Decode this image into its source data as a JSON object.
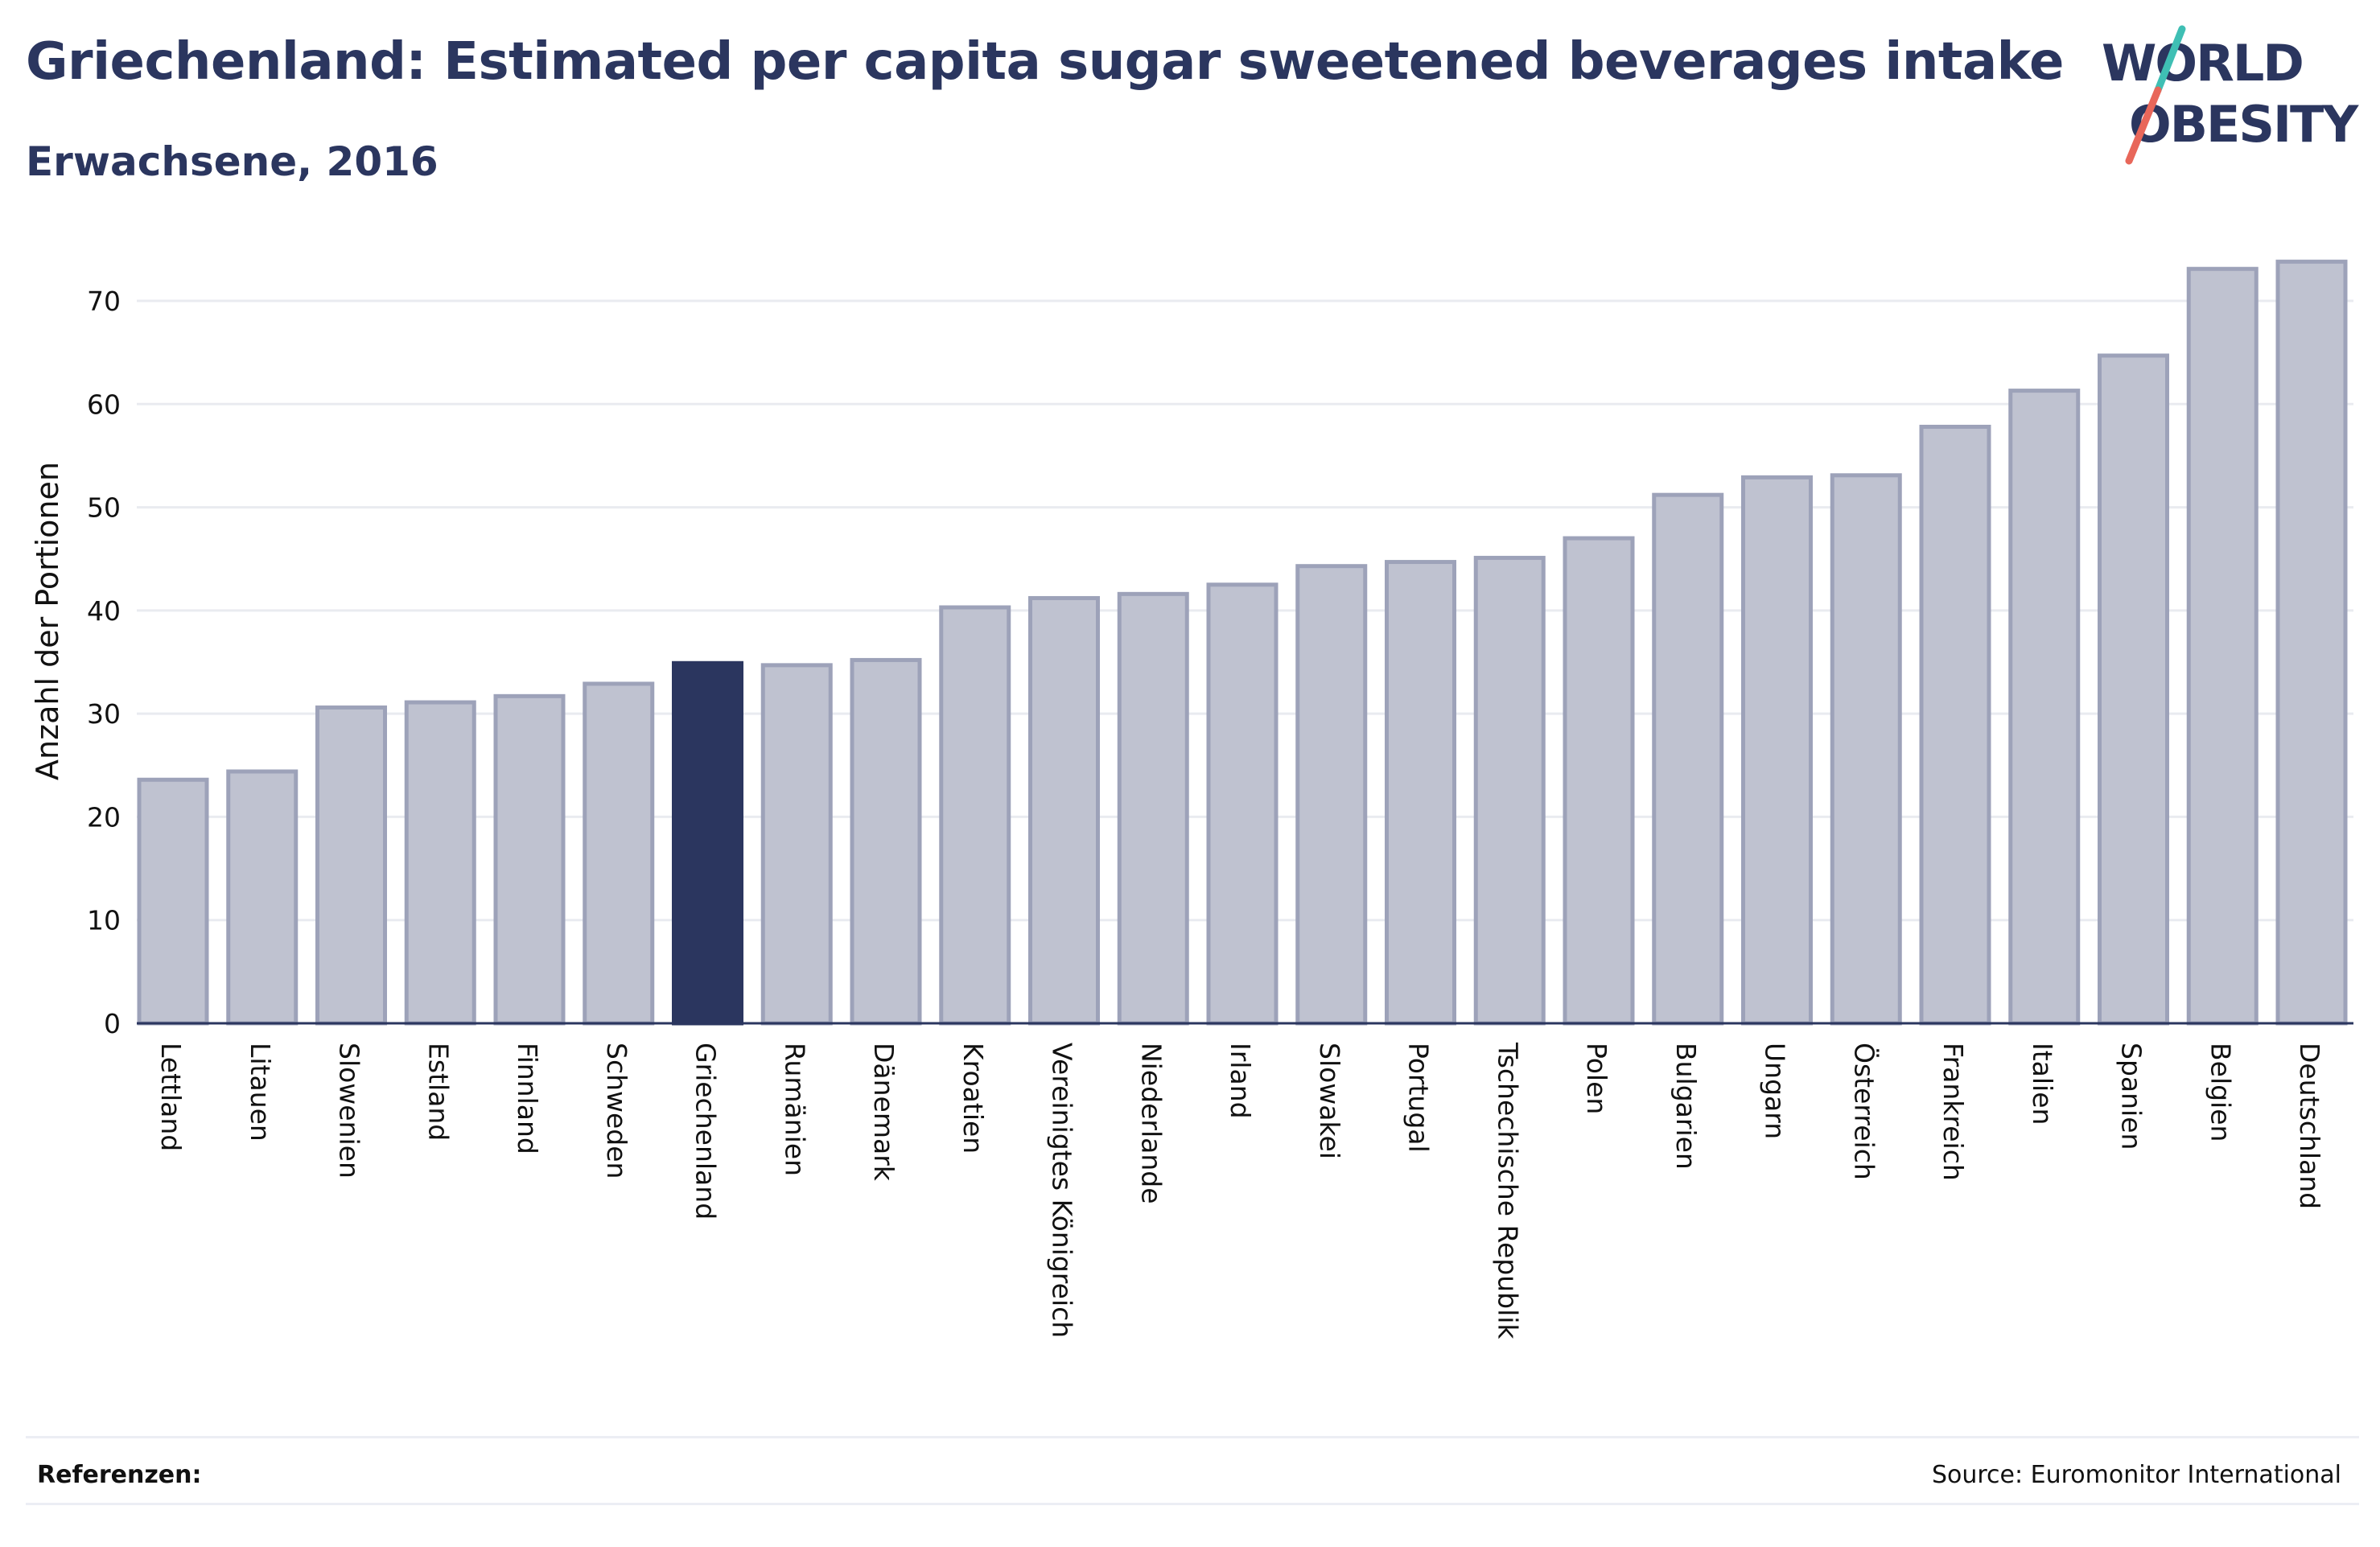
{
  "header": {
    "title": "Griechenland: Estimated per capita sugar sweetened beverages intake",
    "subtitle": "Erwachsene, 2016"
  },
  "logo": {
    "line1": "WORLD",
    "line2": "OBESITY",
    "brand_color": "#2b365f",
    "slash_color_top": "#3fbfb4",
    "slash_color_bottom": "#e8675a"
  },
  "colors": {
    "bar_fill": "#bfc2d0",
    "bar_stroke": "#9da2b9",
    "highlight_fill": "#2b365f",
    "grid": "#e9ebf0",
    "axis": "#2b365f"
  },
  "chart_data": {
    "type": "bar",
    "categories": [
      "Lettland",
      "Litauen",
      "Slowenien",
      "Estland",
      "Finnland",
      "Schweden",
      "Griechenland",
      "Rumänien",
      "Dänemark",
      "Kroatien",
      "Vereinigtes Königreich",
      "Niederlande",
      "Irland",
      "Slowakei",
      "Portugal",
      "Tschechische Republik",
      "Polen",
      "Bulgarien",
      "Ungarn",
      "Österreich",
      "Frankreich",
      "Italien",
      "Spanien",
      "Belgien",
      "Deutschland"
    ],
    "values": [
      23.6,
      24.4,
      30.6,
      31.1,
      31.7,
      32.9,
      34.9,
      34.7,
      35.2,
      40.3,
      41.2,
      41.6,
      42.5,
      44.3,
      44.7,
      45.1,
      47.0,
      51.2,
      52.9,
      53.1,
      57.8,
      61.3,
      64.7,
      73.1,
      73.8
    ],
    "highlight": "Griechenland",
    "ylabel": "Anzahl der Portionen",
    "xlabel": "",
    "ylim": [
      0,
      75
    ],
    "yticks": [
      0,
      10,
      20,
      30,
      40,
      50,
      60,
      70
    ],
    "grid": true
  },
  "footer": {
    "references_label": "Referenzen:",
    "source": "Source: Euromonitor International"
  }
}
